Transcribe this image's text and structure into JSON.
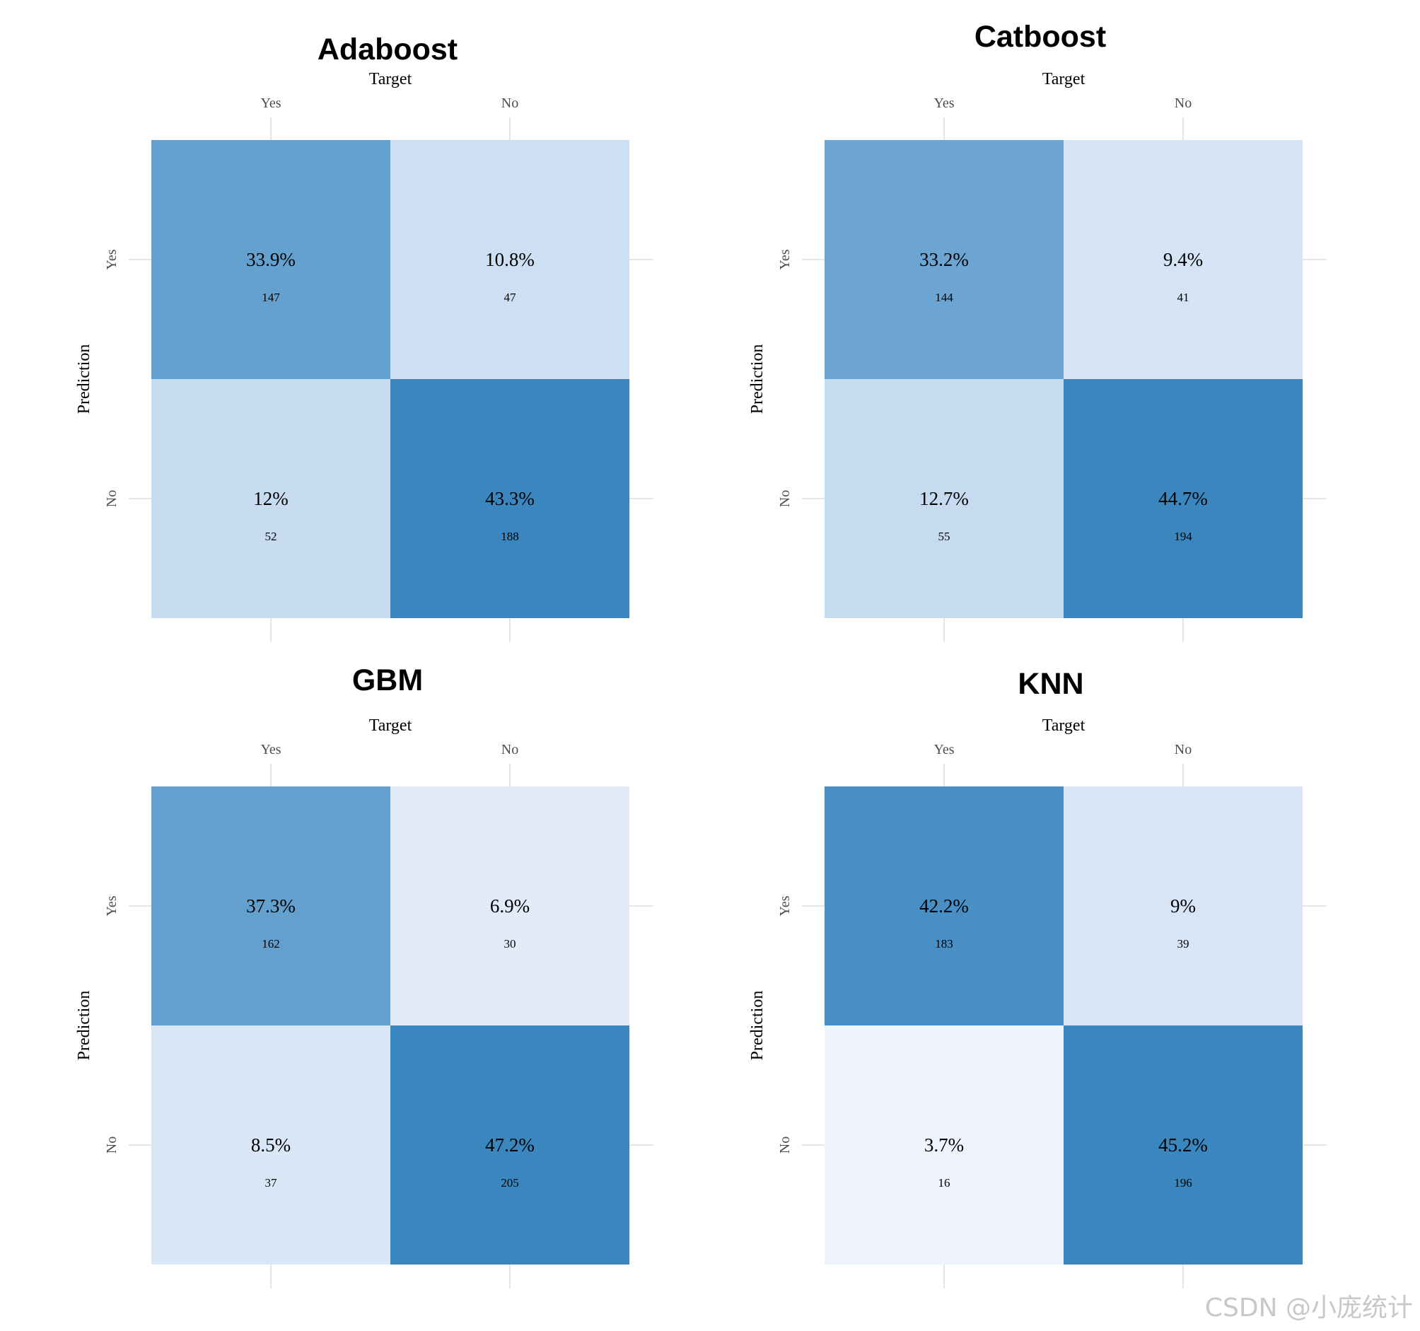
{
  "figure": {
    "watermark": "CSDN @小庞统计"
  },
  "chart_data": [
    {
      "type": "heatmap",
      "title": "Adaboost",
      "xlabel": "Target",
      "ylabel": "Prediction",
      "x_categories": [
        "Yes",
        "No"
      ],
      "y_categories": [
        "Yes",
        "No"
      ],
      "cells": [
        {
          "target": "Yes",
          "prediction": "Yes",
          "percent": "33.9%",
          "count": 147
        },
        {
          "target": "No",
          "prediction": "Yes",
          "percent": "10.8%",
          "count": 47
        },
        {
          "target": "Yes",
          "prediction": "No",
          "percent": "12%",
          "count": 52
        },
        {
          "target": "No",
          "prediction": "No",
          "percent": "43.3%",
          "count": 188
        }
      ]
    },
    {
      "type": "heatmap",
      "title": "Catboost",
      "xlabel": "Target",
      "ylabel": "Prediction",
      "x_categories": [
        "Yes",
        "No"
      ],
      "y_categories": [
        "Yes",
        "No"
      ],
      "cells": [
        {
          "target": "Yes",
          "prediction": "Yes",
          "percent": "33.2%",
          "count": 144
        },
        {
          "target": "No",
          "prediction": "Yes",
          "percent": "9.4%",
          "count": 41
        },
        {
          "target": "Yes",
          "prediction": "No",
          "percent": "12.7%",
          "count": 55
        },
        {
          "target": "No",
          "prediction": "No",
          "percent": "44.7%",
          "count": 194
        }
      ]
    },
    {
      "type": "heatmap",
      "title": "GBM",
      "xlabel": "Target",
      "ylabel": "Prediction",
      "x_categories": [
        "Yes",
        "No"
      ],
      "y_categories": [
        "Yes",
        "No"
      ],
      "cells": [
        {
          "target": "Yes",
          "prediction": "Yes",
          "percent": "37.3%",
          "count": 162
        },
        {
          "target": "No",
          "prediction": "Yes",
          "percent": "6.9%",
          "count": 30
        },
        {
          "target": "Yes",
          "prediction": "No",
          "percent": "8.5%",
          "count": 37
        },
        {
          "target": "No",
          "prediction": "No",
          "percent": "47.2%",
          "count": 205
        }
      ]
    },
    {
      "type": "heatmap",
      "title": "KNN",
      "xlabel": "Target",
      "ylabel": "Prediction",
      "x_categories": [
        "Yes",
        "No"
      ],
      "y_categories": [
        "Yes",
        "No"
      ],
      "cells": [
        {
          "target": "Yes",
          "prediction": "Yes",
          "percent": "42.2%",
          "count": 183
        },
        {
          "target": "No",
          "prediction": "Yes",
          "percent": "9%",
          "count": 39
        },
        {
          "target": "Yes",
          "prediction": "No",
          "percent": "3.7%",
          "count": 16
        },
        {
          "target": "No",
          "prediction": "No",
          "percent": "45.2%",
          "count": 196
        }
      ]
    }
  ],
  "colors": {
    "low": "#eef3fe",
    "high": "#3a87c0",
    "grid": "#e6e6e6"
  }
}
